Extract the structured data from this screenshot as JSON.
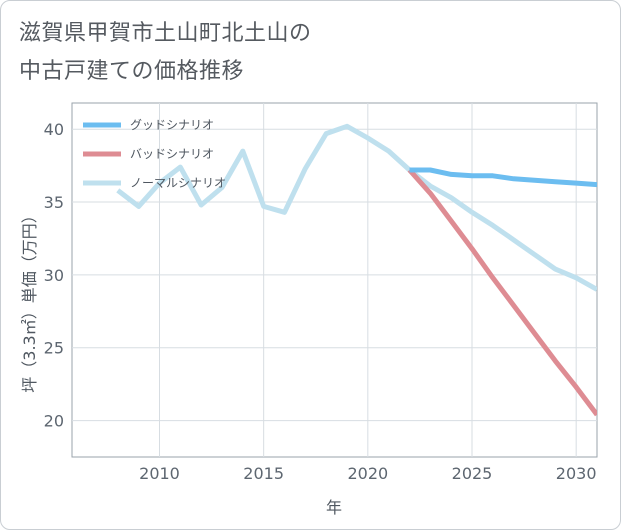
{
  "title": {
    "line1": "滋賀県甲賀市土山町北土山の",
    "line2": "中古戸建ての価格推移"
  },
  "chart_data": {
    "type": "line",
    "xlabel": "年",
    "ylabel": "坪（3.3㎡）単価（万円）",
    "xlim": [
      2005.8,
      2031
    ],
    "ylim": [
      17.5,
      41.8
    ],
    "xticks": [
      2010,
      2015,
      2020,
      2025,
      2030
    ],
    "yticks": [
      20,
      25,
      30,
      35,
      40
    ],
    "grid": true,
    "legend_position": "top-left",
    "series": [
      {
        "name": "グッドシナリオ",
        "color": "#6cbdf0",
        "points": [
          [
            2022,
            37.2
          ],
          [
            2023,
            37.2
          ],
          [
            2024,
            36.9
          ],
          [
            2025,
            36.8
          ],
          [
            2026,
            36.8
          ],
          [
            2027,
            36.6
          ],
          [
            2028,
            36.5
          ],
          [
            2029,
            36.4
          ],
          [
            2030,
            36.3
          ],
          [
            2031,
            36.2
          ]
        ]
      },
      {
        "name": "バッドシナリオ",
        "color": "#de8c93",
        "points": [
          [
            2022,
            37.2
          ],
          [
            2023,
            35.6
          ],
          [
            2024,
            33.7
          ],
          [
            2025,
            31.8
          ],
          [
            2026,
            29.8
          ],
          [
            2027,
            27.9
          ],
          [
            2028,
            26.0
          ],
          [
            2029,
            24.1
          ],
          [
            2030,
            22.3
          ],
          [
            2031,
            20.4
          ]
        ]
      },
      {
        "name": "ノーマルシナリオ",
        "color": "#bfe0ee",
        "points": [
          [
            2008,
            35.8
          ],
          [
            2009,
            34.7
          ],
          [
            2010,
            36.3
          ],
          [
            2011,
            37.4
          ],
          [
            2012,
            34.8
          ],
          [
            2013,
            36.0
          ],
          [
            2014,
            38.5
          ],
          [
            2015,
            34.7
          ],
          [
            2016,
            34.3
          ],
          [
            2017,
            37.3
          ],
          [
            2018,
            39.7
          ],
          [
            2019,
            40.2
          ],
          [
            2020,
            39.4
          ],
          [
            2021,
            38.5
          ],
          [
            2022,
            37.2
          ],
          [
            2023,
            36.1
          ],
          [
            2024,
            35.3
          ],
          [
            2025,
            34.3
          ],
          [
            2026,
            33.4
          ],
          [
            2027,
            32.4
          ],
          [
            2028,
            31.4
          ],
          [
            2029,
            30.4
          ],
          [
            2030,
            29.8
          ],
          [
            2031,
            29.0
          ]
        ]
      }
    ]
  }
}
